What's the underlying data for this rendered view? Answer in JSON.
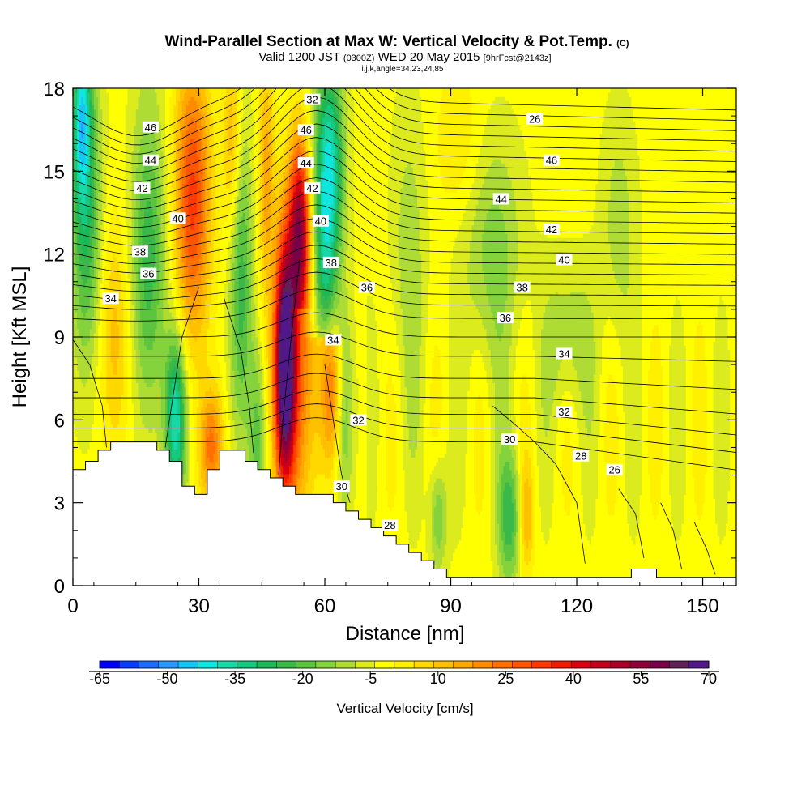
{
  "chart_data": {
    "type": "heatmap",
    "title": "Wind-Parallel Section at Max W: Vertical Velocity & Pot.Temp.",
    "title_mark": "(C)",
    "subtitle_parts": [
      "Valid 1200 JST",
      "(0300Z)",
      "WED 20 May 2015",
      "[9hrFcst@2143z]"
    ],
    "subtitle2": "i,j,k,angle=34,23,24,85",
    "xlabel": "Distance [nm]",
    "ylabel": "Height [Kft MSL]",
    "xlim": [
      0,
      158
    ],
    "ylim": [
      0,
      18
    ],
    "x_ticks": [
      "0",
      "30",
      "60",
      "90",
      "120",
      "150"
    ],
    "y_ticks": [
      "0",
      "3",
      "6",
      "9",
      "12",
      "15",
      "18"
    ],
    "colorbar": {
      "label": "Vertical Velocity [cm/s]",
      "min": -65,
      "max": 70,
      "step": 5,
      "tick_labels": [
        "-65",
        "-50",
        "-35",
        "-20",
        "-5",
        "10",
        "25",
        "40",
        "55",
        "70"
      ],
      "colors": [
        "#0000ff",
        "#0a3cff",
        "#1c6cff",
        "#2b98ff",
        "#18c4f2",
        "#10e6e0",
        "#18d8a8",
        "#16c880",
        "#1cb858",
        "#3ab84a",
        "#5cc43e",
        "#84d23c",
        "#aedc34",
        "#dceb1e",
        "#ffff00",
        "#fff000",
        "#ffd800",
        "#ffc000",
        "#ffa800",
        "#ff8c00",
        "#ff7000",
        "#ff5400",
        "#ff3800",
        "#f01c00",
        "#d80010",
        "#c0001c",
        "#a80028",
        "#900038",
        "#780048",
        "#602058",
        "#501888"
      ]
    },
    "contour_labels": [
      "46",
      "44",
      "42",
      "40",
      "38",
      "36",
      "34",
      "32",
      "46",
      "44",
      "42",
      "40",
      "38",
      "36",
      "34",
      "32",
      "30",
      "28",
      "26",
      "46",
      "44",
      "42",
      "40",
      "38",
      "36",
      "34",
      "32",
      "30",
      "28",
      "26"
    ]
  }
}
